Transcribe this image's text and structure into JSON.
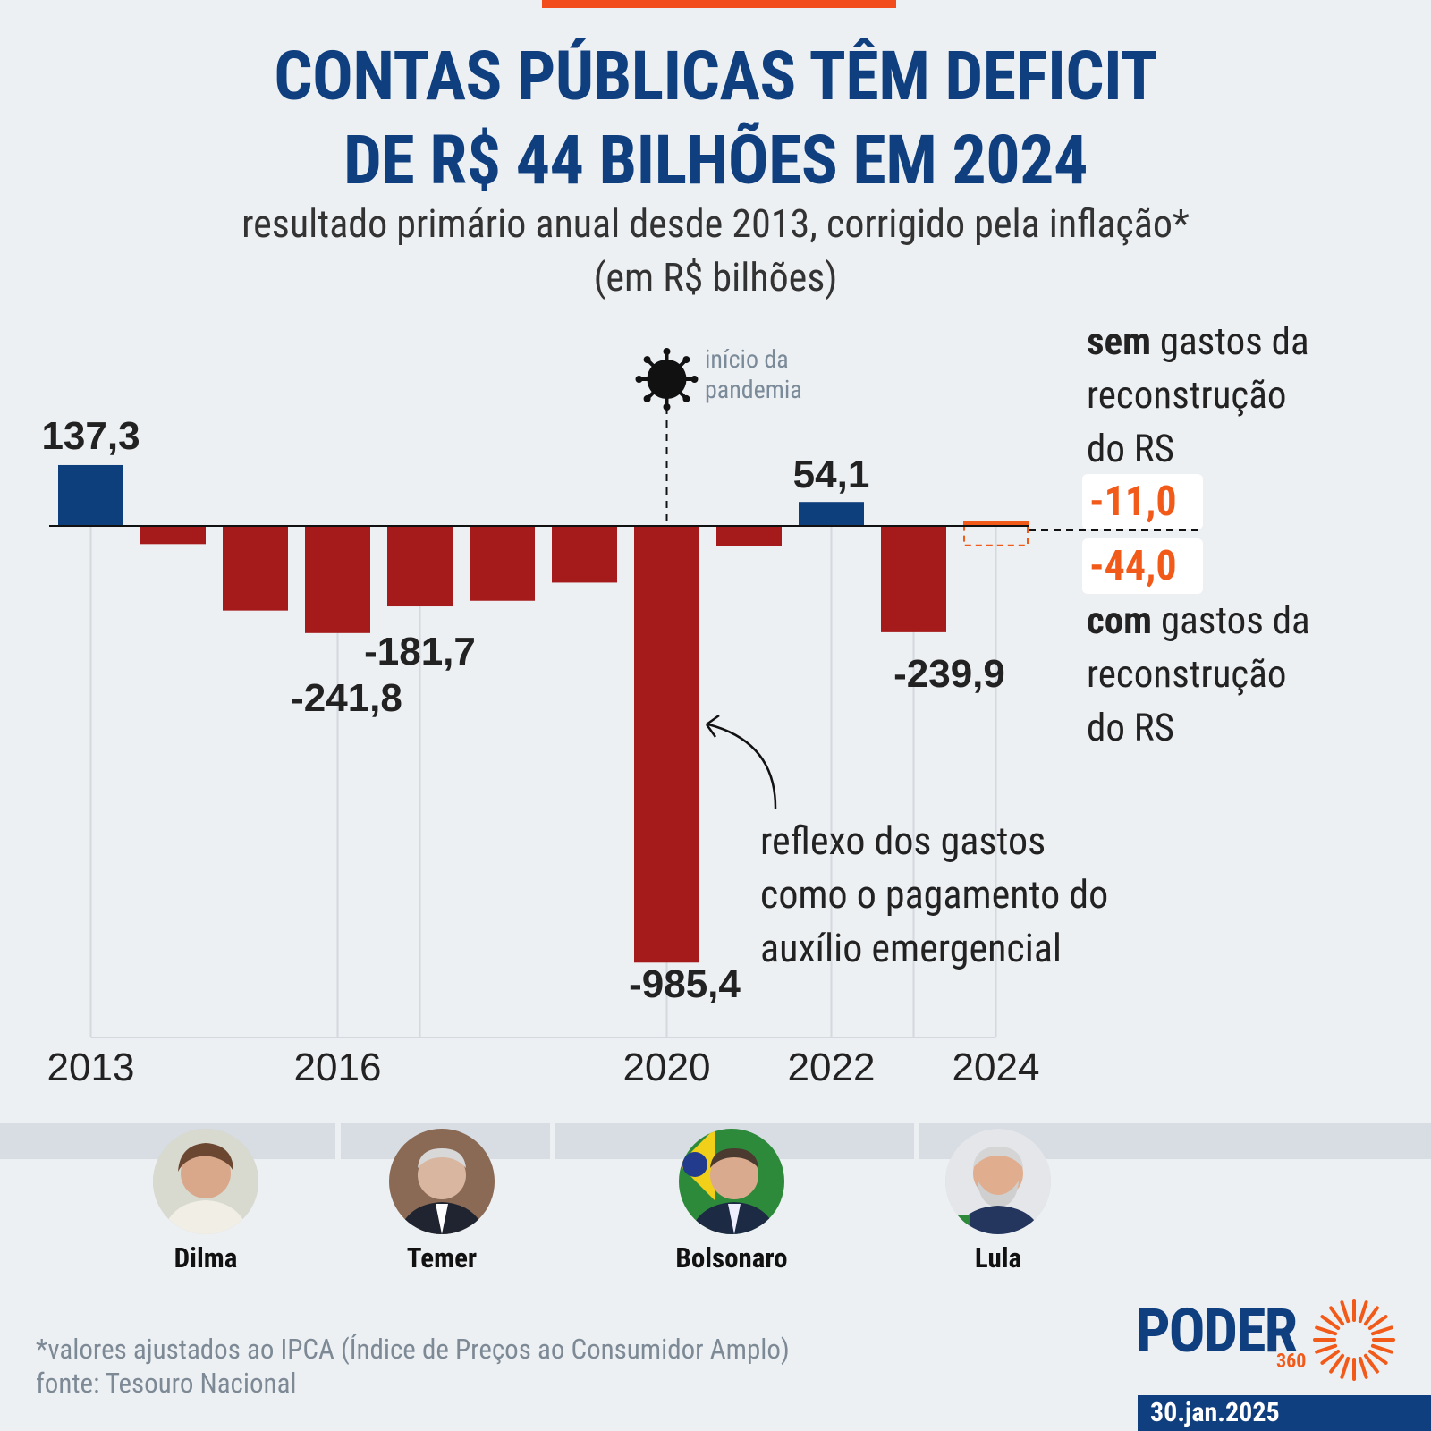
{
  "title_line1": "CONTAS PÚBLICAS TÊM DEFICIT",
  "title_line2": "DE R$ 44 BILHÕES EM 2024",
  "subtitle_line1": "resultado primário anual desde 2013, corrigido pela inflação*",
  "subtitle_line2": "(em R$ bilhões)",
  "chart_data": {
    "type": "bar",
    "categories": [
      "2013",
      "2014",
      "2015",
      "2016",
      "2017",
      "2018",
      "2019",
      "2020",
      "2021",
      "2022",
      "2023",
      "2024"
    ],
    "values": [
      137.3,
      -41.0,
      -191.0,
      -241.8,
      -181.7,
      -169.0,
      -128.0,
      -985.4,
      -45.0,
      54.1,
      -239.9,
      -11.0
    ],
    "value_labels": {
      "2013": "137,3",
      "2016": "-241,8",
      "2017": "-181,7",
      "2020": "-985,4",
      "2022": "54,1",
      "2023": "-239,9"
    },
    "tick_labels": [
      "2013",
      "2016",
      "2020",
      "2022",
      "2024"
    ],
    "scenario_2024_with_rs": -44.0,
    "ylim": [
      -1100,
      160
    ],
    "colors": {
      "positive": "#0d3f7c",
      "negative": "#a51b1b",
      "highlight": "#f25a19"
    }
  },
  "side_note": {
    "top_bold": "sem",
    "top_rest": " gastos da",
    "top_line2": "reconstrução",
    "top_line3": "do RS",
    "value_without": "-11,0",
    "value_with": "-44,0",
    "bottom_bold": "com",
    "bottom_rest": " gastos da",
    "bottom_line2": "reconstrução",
    "bottom_line3": "do RS"
  },
  "pandemic_note_line1": "início da",
  "pandemic_note_line2": "pandemia",
  "annotation_line1": "reflexo dos gastos",
  "annotation_line2": "como o pagamento do",
  "annotation_line3": "auxílio emergencial",
  "presidents": [
    "Dilma",
    "Temer",
    "Bolsonaro",
    "Lula"
  ],
  "footnote_line1": "*valores ajustados ao IPCA (Índice de Preços ao Consumidor Amplo)",
  "footnote_line2": "fonte: Tesouro Nacional",
  "logo_text": "PODER",
  "logo_sub": "360",
  "date": "30.jan.2025"
}
